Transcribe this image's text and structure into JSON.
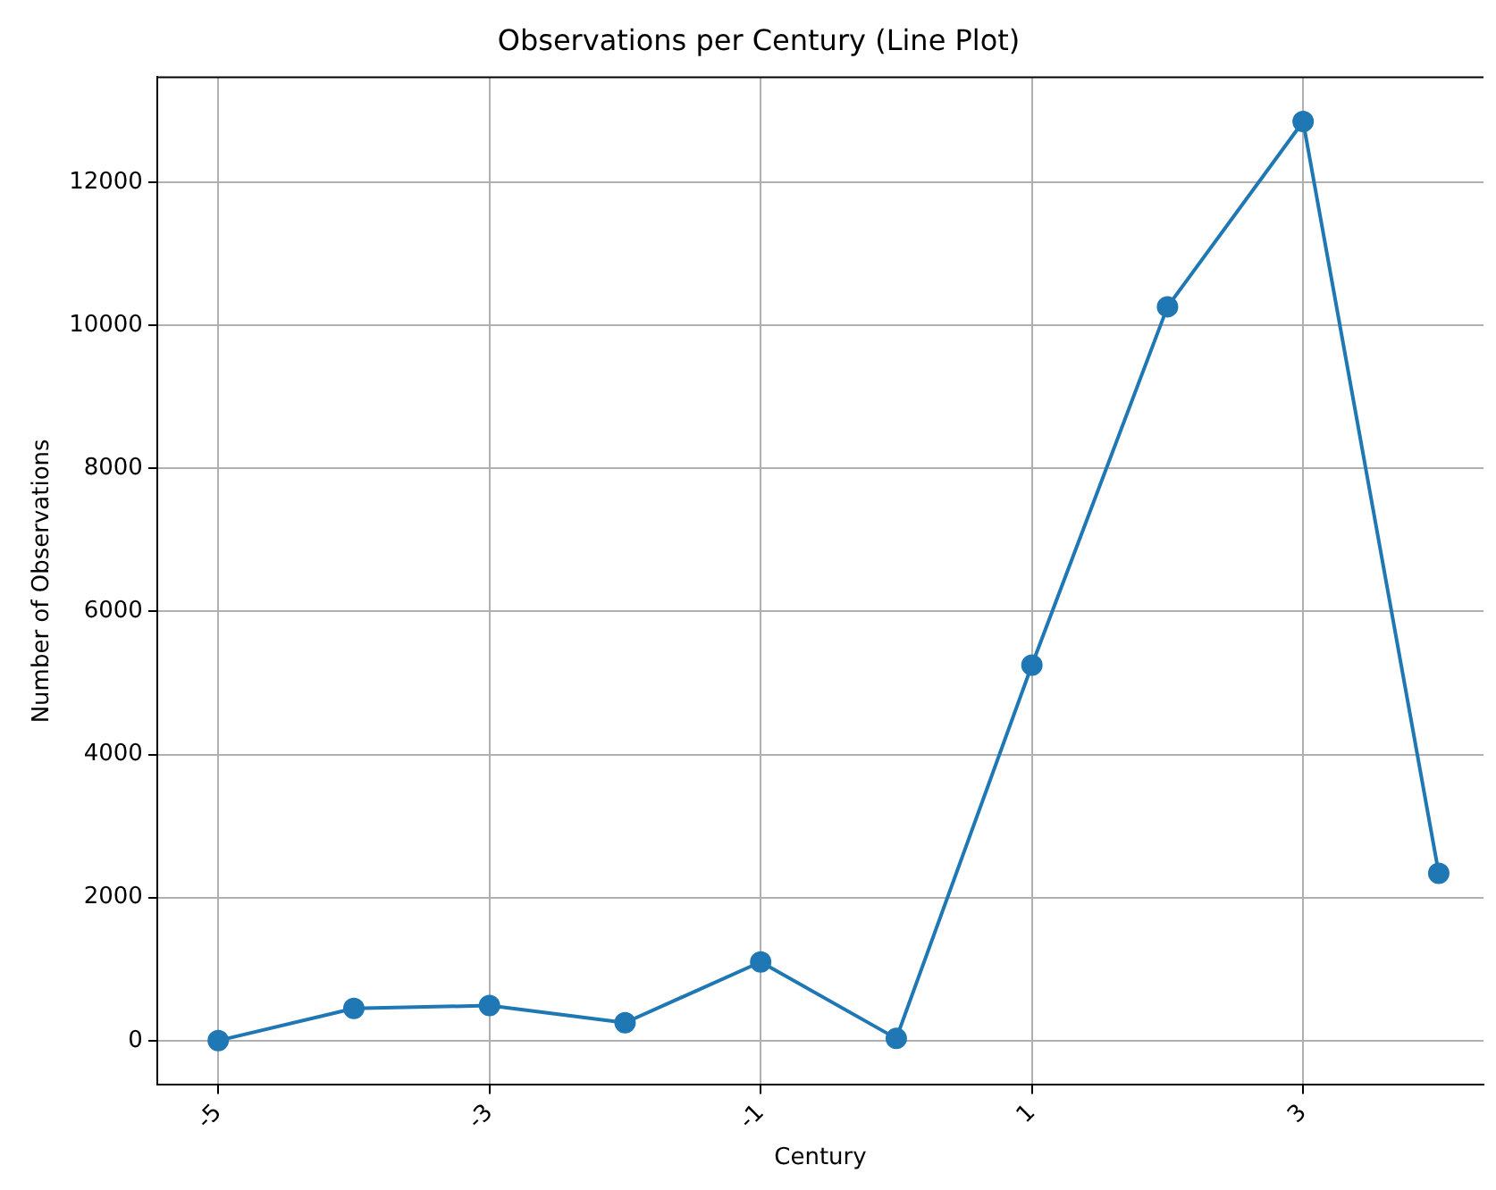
{
  "chart_data": {
    "type": "line",
    "title": "Observations per Century (Line Plot)",
    "xlabel": "Century",
    "ylabel": "Number of Observations",
    "x": [
      -5,
      -4,
      -3,
      -2,
      -1,
      0,
      1,
      2,
      3,
      4
    ],
    "series": [
      {
        "color": "#1f77b4",
        "values": [
          0,
          450,
          490,
          250,
          1100,
          30,
          5250,
          10260,
          12850,
          2340
        ]
      }
    ],
    "xlim": [
      -5.45,
      4.33
    ],
    "xticks": [
      -5,
      -3,
      -1,
      1,
      3
    ],
    "ylim": [
      -620,
      13470
    ],
    "yticks": [
      0,
      2000,
      4000,
      6000,
      8000,
      10000,
      12000
    ],
    "grid": true,
    "marker": "circle",
    "line_style": "solid"
  }
}
